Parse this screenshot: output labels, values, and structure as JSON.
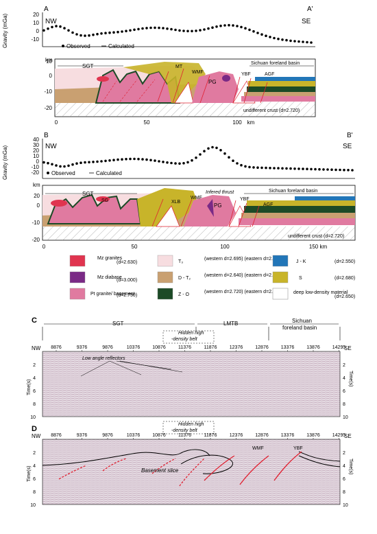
{
  "panelA": {
    "label_left": "A",
    "label_right": "A'",
    "dir_left": "NW",
    "dir_right": "SE",
    "ylabel": "Gravity (mGa)",
    "yticks": [
      "20",
      "10",
      "0",
      "-10"
    ],
    "legend_observed": "Observed",
    "legend_calculated": "Calculated",
    "km_label": "km",
    "depth_ticks": [
      "10",
      "0",
      "-10",
      "-20"
    ],
    "x_ticks": [
      "0",
      "50",
      "100",
      "km"
    ],
    "units": {
      "sgt": "SGT",
      "mt": "MT",
      "wmf": "WMF",
      "pg": "PG",
      "ybf": "YBF",
      "agf": "AGF",
      "basin": "Sichuan foreland basin"
    },
    "crust_label": "undifferent crust (d=2.720)"
  },
  "panelB": {
    "label_left": "B",
    "label_right": "B'",
    "dir_left": "NW",
    "dir_right": "SE",
    "ylabel": "Gravity (mGa)",
    "yticks": [
      "40",
      "30",
      "20",
      "10",
      "0",
      "-10",
      "-20"
    ],
    "legend_observed": "Observed",
    "legend_calculated": "Calculated",
    "km_label": "km",
    "depth_ticks": [
      "20",
      "0",
      "-10",
      "-20"
    ],
    "x_ticks": [
      "0",
      "50",
      "100",
      "150 km"
    ],
    "units": {
      "sgt": "SGT",
      "sg": "SG",
      "xlb": "XLB",
      "wmf": "WMF",
      "thrust": "Infered thrust",
      "pg": "PG",
      "ybf": "YBF",
      "agf": "AGF",
      "basin": "Sichuan foreland basin"
    },
    "crust_label": "undifferent crust (d=2.720)"
  },
  "legend": [
    {
      "id": "mz-granites",
      "name": "Mz\ngranites",
      "density": "(d=2.630)",
      "color": "#e0344f"
    },
    {
      "id": "mz-diabase",
      "name": "Mz\ndiabase",
      "density": "(d=3.000)",
      "color": "#7a2a86"
    },
    {
      "id": "pt-granite",
      "name": "Pt granite/\nbasement",
      "density": "(d=2.750)",
      "color": "#e07aa0"
    },
    {
      "id": "t3",
      "name": "T₃",
      "density": "(western d=2.695)\n(eastern d=2.620)",
      "color": "#f7dde0"
    },
    {
      "id": "d-t2",
      "name": "D - T₂",
      "density": "(western d=2.640)\n(eastern d=2.670)",
      "color": "#c9a071"
    },
    {
      "id": "z-o",
      "name": "Z - O",
      "density": "(western d=2.720)\n(eastern d=2.740)",
      "color": "#1c4a26"
    },
    {
      "id": "j-k",
      "name": "J - K",
      "density": "(d=2.550)",
      "color": "#2276b8"
    },
    {
      "id": "s",
      "name": "S",
      "density": "(d=2.680)",
      "color": "#c8b42a"
    },
    {
      "id": "deep",
      "name": "deep low-density\nmaterial",
      "density": "(d=2.650)",
      "color": "#ffffff"
    }
  ],
  "panelC": {
    "label": "C",
    "nw": "NW",
    "se": "SE",
    "cdps": [
      "8876",
      "9376",
      "9876",
      "10376",
      "10876",
      "11376",
      "11876",
      "12376",
      "12876",
      "13376",
      "13876",
      "14295"
    ],
    "units": {
      "sgt": "SGT",
      "lmtb": "LMTB",
      "basin1": "Sichuan",
      "basin2": "foreland basin"
    },
    "hidden": "Hidden high\n-density belt",
    "reflectors": "Low angle reflectors",
    "tticks": [
      "2",
      "4",
      "6",
      "8",
      "10"
    ],
    "tlabel": "Time(s)"
  },
  "panelD": {
    "label": "D",
    "nw": "NW",
    "se": "SE",
    "cdps": [
      "8876",
      "9376",
      "9876",
      "10376",
      "10876",
      "11376",
      "11876",
      "12376",
      "12876",
      "13376",
      "13876",
      "14295"
    ],
    "hidden": "Hidden high\n-density belt",
    "basement": "Basement slice",
    "wmf": "WMF",
    "ybf": "YBF",
    "tticks": [
      "2",
      "4",
      "6",
      "8",
      "10"
    ],
    "tlabel": "Time(s)"
  }
}
